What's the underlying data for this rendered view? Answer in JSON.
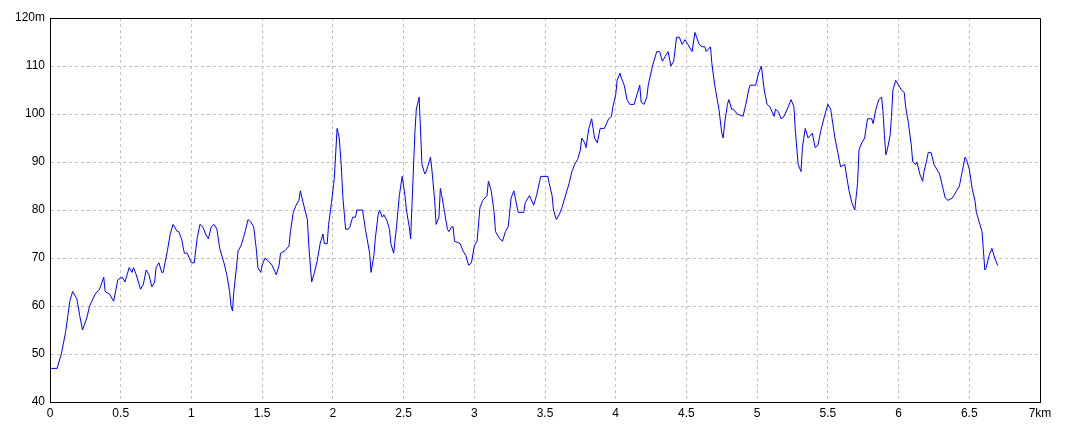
{
  "chart_data": {
    "type": "line",
    "color": "#0000ff",
    "marker": "none",
    "line_style": "solid",
    "grid": true,
    "xlim": [
      0,
      7
    ],
    "xticks": [
      0,
      0.5,
      1,
      1.5,
      2,
      2.5,
      3,
      3.5,
      4,
      4.5,
      5,
      5.5,
      6,
      6.5,
      {
        "value": 7,
        "label": "7km"
      }
    ],
    "ylim": [
      40,
      120
    ],
    "yticks": [
      40,
      50,
      60,
      70,
      80,
      90,
      100,
      110,
      {
        "value": 120,
        "label": "120m"
      }
    ],
    "x": [
      0,
      0.05,
      0.08,
      0.11,
      0.14,
      0.16,
      0.19,
      0.21,
      0.23,
      0.26,
      0.28,
      0.32,
      0.35,
      0.38,
      0.39,
      0.42,
      0.45,
      0.46,
      0.48,
      0.51,
      0.53,
      0.56,
      0.58,
      0.59,
      0.61,
      0.64,
      0.66,
      0.68,
      0.7,
      0.72,
      0.74,
      0.75,
      0.77,
      0.79,
      0.8,
      0.83,
      0.85,
      0.87,
      0.9,
      0.91,
      0.93,
      0.95,
      0.97,
      1.0,
      1.02,
      1.04,
      1.06,
      1.08,
      1.1,
      1.12,
      1.14,
      1.16,
      1.18,
      1.2,
      1.23,
      1.25,
      1.27,
      1.28,
      1.29,
      1.3,
      1.32,
      1.33,
      1.35,
      1.37,
      1.38,
      1.4,
      1.42,
      1.44,
      1.46,
      1.47,
      1.49,
      1.5,
      1.52,
      1.54,
      1.57,
      1.6,
      1.62,
      1.63,
      1.66,
      1.69,
      1.7,
      1.72,
      1.74,
      1.76,
      1.77,
      1.79,
      1.82,
      1.83,
      1.85,
      1.87,
      1.89,
      1.91,
      1.93,
      1.94,
      1.96,
      1.97,
      1.99,
      2.01,
      2.03,
      2.045,
      2.06,
      2.07,
      2.09,
      2.11,
      2.12,
      2.14,
      2.16,
      2.17,
      2.21,
      2.23,
      2.26,
      2.27,
      2.29,
      2.3,
      2.32,
      2.33,
      2.35,
      2.36,
      2.38,
      2.4,
      2.41,
      2.43,
      2.45,
      2.47,
      2.49,
      2.51,
      2.52,
      2.54,
      2.55,
      2.56,
      2.58,
      2.59,
      2.61,
      2.62,
      2.63,
      2.65,
      2.66,
      2.69,
      2.7,
      2.72,
      2.73,
      2.75,
      2.76,
      2.77,
      2.79,
      2.81,
      2.82,
      2.84,
      2.85,
      2.86,
      2.9,
      2.92,
      2.94,
      2.96,
      2.98,
      3.0,
      3.02,
      3.04,
      3.06,
      3.09,
      3.1,
      3.12,
      3.14,
      3.15,
      3.18,
      3.2,
      3.22,
      3.24,
      3.26,
      3.28,
      3.3,
      3.31,
      3.35,
      3.36,
      3.39,
      3.42,
      3.44,
      3.47,
      3.52,
      3.53,
      3.55,
      3.56,
      3.58,
      3.6,
      3.62,
      3.64,
      3.67,
      3.69,
      3.71,
      3.73,
      3.75,
      3.76,
      3.78,
      3.79,
      3.81,
      3.83,
      3.84,
      3.85,
      3.87,
      3.89,
      3.92,
      3.95,
      3.97,
      3.98,
      4.0,
      4.01,
      4.03,
      4.04,
      4.06,
      4.08,
      4.1,
      4.13,
      4.15,
      4.17,
      4.18,
      4.2,
      4.22,
      4.23,
      4.26,
      4.29,
      4.31,
      4.33,
      4.35,
      4.37,
      4.39,
      4.41,
      4.43,
      4.45,
      4.47,
      4.49,
      4.51,
      4.54,
      4.56,
      4.59,
      4.61,
      4.63,
      4.64,
      4.67,
      4.68,
      4.7,
      4.73,
      4.75,
      4.76,
      4.77,
      4.79,
      4.8,
      4.82,
      4.83,
      4.86,
      4.9,
      4.92,
      4.94,
      4.95,
      4.99,
      5.01,
      5.03,
      5.05,
      5.07,
      5.09,
      5.12,
      5.13,
      5.15,
      5.17,
      5.19,
      5.22,
      5.24,
      5.26,
      5.27,
      5.29,
      5.31,
      5.32,
      5.34,
      5.36,
      5.39,
      5.41,
      5.43,
      5.45,
      5.48,
      5.5,
      5.52,
      5.55,
      5.57,
      5.59,
      5.62,
      5.63,
      5.65,
      5.67,
      5.69,
      5.71,
      5.72,
      5.74,
      5.76,
      5.78,
      5.81,
      5.82,
      5.84,
      5.86,
      5.88,
      5.89,
      5.9,
      5.91,
      5.92,
      5.94,
      5.95,
      5.96,
      5.98,
      6.0,
      6.02,
      6.04,
      6.05,
      6.07,
      6.09,
      6.1,
      6.12,
      6.13,
      6.15,
      6.17,
      6.18,
      6.2,
      6.21,
      6.23,
      6.25,
      6.27,
      6.29,
      6.31,
      6.33,
      6.35,
      6.38,
      6.41,
      6.43,
      6.45,
      6.47,
      6.48,
      6.5,
      6.52,
      6.54,
      6.55,
      6.57,
      6.59,
      6.6,
      6.61,
      6.62,
      6.64,
      6.66,
      6.68,
      6.7
    ],
    "values": [
      47,
      47,
      50,
      54.5,
      61,
      63,
      61.5,
      58,
      55,
      57.5,
      60,
      62.5,
      63.5,
      66,
      63,
      62.5,
      61,
      62.5,
      65.5,
      66,
      65,
      68,
      67,
      68,
      66.5,
      63.5,
      64.5,
      67.5,
      66.5,
      64,
      65,
      68,
      69,
      67,
      67,
      71.5,
      75,
      77,
      75.5,
      75.5,
      74,
      71,
      71,
      69,
      69,
      74,
      77,
      76.5,
      75,
      74,
      76.5,
      77,
      76,
      72,
      69,
      66.5,
      63,
      60,
      59,
      63,
      68.5,
      71.5,
      72.5,
      74.5,
      75.5,
      78,
      77.5,
      76.5,
      71.5,
      68,
      67,
      68.5,
      70,
      69.5,
      68.5,
      66.5,
      68.5,
      71,
      71.5,
      72.5,
      75.5,
      79.5,
      81,
      82,
      84,
      81.5,
      78,
      72.5,
      65,
      67,
      69.5,
      73,
      75,
      73,
      73,
      77,
      81.5,
      86.5,
      97,
      95,
      89,
      83,
      76,
      76,
      76.5,
      78.5,
      78.5,
      80,
      80,
      76,
      71,
      67,
      70.5,
      74,
      79,
      80,
      78.5,
      79,
      78,
      76,
      73,
      71,
      76.5,
      83,
      87,
      83,
      80,
      76.5,
      74,
      81.5,
      96,
      101,
      103.5,
      96.5,
      89.5,
      87.5,
      88,
      91,
      88.5,
      82,
      77,
      78.5,
      84.5,
      83,
      79.5,
      76,
      75.5,
      76.5,
      76.5,
      73.5,
      73,
      71.5,
      70.5,
      68.5,
      69,
      72.5,
      73.5,
      80.5,
      82,
      83,
      86,
      84,
      79.5,
      75.5,
      74,
      73.5,
      75.5,
      76.5,
      82.5,
      84,
      81,
      79.5,
      79.5,
      81.5,
      83,
      81,
      83,
      87,
      87,
      85.5,
      83,
      80,
      78,
      79,
      80.5,
      82.5,
      85.5,
      88,
      89.5,
      90.5,
      92.5,
      95,
      94,
      93,
      97,
      99,
      97,
      95,
      94,
      97,
      97,
      99,
      99.5,
      101.5,
      104,
      107,
      108.5,
      107.5,
      106,
      103,
      102,
      102,
      104,
      106,
      102.5,
      102,
      103.5,
      106,
      110,
      113,
      113,
      111,
      112,
      113,
      110,
      111,
      116,
      116,
      114.5,
      115.5,
      114.5,
      113,
      117,
      114.5,
      114,
      114,
      113,
      114,
      110.5,
      106,
      101,
      96,
      95,
      98,
      102,
      103,
      101,
      101,
      100,
      99.5,
      102,
      105,
      106,
      106,
      108.5,
      110,
      105,
      102,
      101.5,
      99.5,
      101,
      100.5,
      99,
      99.5,
      101.5,
      103,
      101.5,
      96.5,
      89.5,
      88,
      93,
      97,
      95,
      96,
      93,
      93.5,
      96.5,
      100,
      102,
      101,
      95,
      92,
      89,
      89.5,
      87.5,
      84,
      81.5,
      80,
      85.5,
      92.5,
      94,
      95,
      99,
      99,
      98,
      101,
      103,
      103.5,
      100.5,
      95.5,
      91.5,
      92.5,
      95.5,
      99.5,
      105,
      107,
      106,
      105,
      104.5,
      101.5,
      98,
      93.5,
      90,
      89.5,
      90,
      87.5,
      86,
      88,
      90.5,
      92,
      92,
      89.5,
      88.5,
      87.5,
      85,
      82.5,
      82,
      82.5,
      84,
      85,
      88,
      91,
      90.5,
      88.5,
      84.5,
      82,
      79.5,
      77.5,
      75.5,
      71.5,
      67.5,
      68,
      70.5,
      72,
      70,
      68.5
    ]
  }
}
